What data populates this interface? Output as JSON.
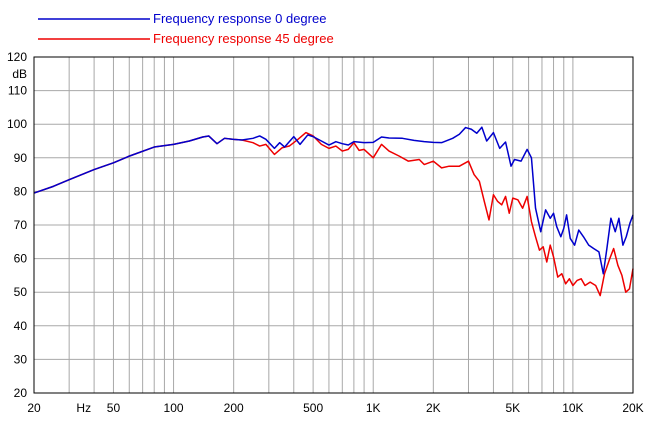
{
  "chart_data": {
    "type": "line",
    "x_scale": "log",
    "xlim": [
      20,
      20000
    ],
    "ylim": [
      20,
      120
    ],
    "grid": true,
    "ylabel": "dB",
    "xlabel": "",
    "legend_position": "top-left",
    "y_ticks": [
      {
        "value": 120,
        "label": "120"
      },
      {
        "value": 110,
        "label": "110"
      },
      {
        "value": 100,
        "label": "100"
      },
      {
        "value": 90,
        "label": "90"
      },
      {
        "value": 80,
        "label": "80"
      },
      {
        "value": 70,
        "label": "70"
      },
      {
        "value": 60,
        "label": "60"
      },
      {
        "value": 50,
        "label": "50"
      },
      {
        "value": 40,
        "label": "40"
      },
      {
        "value": 30,
        "label": "30"
      },
      {
        "value": 20,
        "label": "20"
      }
    ],
    "x_ticks": [
      {
        "value": 20,
        "label": "20"
      },
      {
        "value": 35.5,
        "label": "Hz"
      },
      {
        "value": 50,
        "label": "50"
      },
      {
        "value": 100,
        "label": "100"
      },
      {
        "value": 200,
        "label": "200"
      },
      {
        "value": 500,
        "label": "500"
      },
      {
        "value": 1000,
        "label": "1K"
      },
      {
        "value": 2000,
        "label": "2K"
      },
      {
        "value": 5000,
        "label": "5K"
      },
      {
        "value": 10000,
        "label": "10K"
      },
      {
        "value": 20000,
        "label": "20K"
      }
    ],
    "series": [
      {
        "name": "Frequency response 0 degree",
        "color": "#0000cc",
        "points": [
          [
            20,
            79.5
          ],
          [
            25,
            81.5
          ],
          [
            30,
            83.5
          ],
          [
            40,
            86.5
          ],
          [
            50,
            88.5
          ],
          [
            60,
            90.5
          ],
          [
            80,
            93.2
          ],
          [
            100,
            94.0
          ],
          [
            120,
            95.0
          ],
          [
            140,
            96.2
          ],
          [
            150,
            96.5
          ],
          [
            165,
            94.2
          ],
          [
            180,
            95.8
          ],
          [
            200,
            95.5
          ],
          [
            220,
            95.3
          ],
          [
            250,
            95.8
          ],
          [
            270,
            96.5
          ],
          [
            290,
            95.5
          ],
          [
            320,
            92.8
          ],
          [
            340,
            94.5
          ],
          [
            360,
            93.2
          ],
          [
            400,
            96.3
          ],
          [
            430,
            94.0
          ],
          [
            470,
            96.8
          ],
          [
            500,
            96.3
          ],
          [
            550,
            95.0
          ],
          [
            600,
            93.8
          ],
          [
            650,
            94.8
          ],
          [
            700,
            94.2
          ],
          [
            750,
            93.8
          ],
          [
            800,
            94.8
          ],
          [
            900,
            94.5
          ],
          [
            1000,
            94.6
          ],
          [
            1100,
            96.2
          ],
          [
            1200,
            95.9
          ],
          [
            1400,
            95.8
          ],
          [
            1600,
            95.2
          ],
          [
            1800,
            94.8
          ],
          [
            2000,
            94.6
          ],
          [
            2200,
            94.5
          ],
          [
            2500,
            95.8
          ],
          [
            2700,
            97.0
          ],
          [
            2900,
            99.0
          ],
          [
            3100,
            98.5
          ],
          [
            3300,
            97.3
          ],
          [
            3500,
            99.1
          ],
          [
            3700,
            95.0
          ],
          [
            4000,
            97.5
          ],
          [
            4300,
            92.8
          ],
          [
            4600,
            94.7
          ],
          [
            4900,
            87.5
          ],
          [
            5100,
            89.5
          ],
          [
            5500,
            89.0
          ],
          [
            5900,
            92.5
          ],
          [
            6200,
            90.0
          ],
          [
            6500,
            75.0
          ],
          [
            6900,
            68.0
          ],
          [
            7300,
            74.5
          ],
          [
            7700,
            72.0
          ],
          [
            8000,
            73.5
          ],
          [
            8300,
            69.5
          ],
          [
            8700,
            66.5
          ],
          [
            9000,
            69.0
          ],
          [
            9300,
            73.0
          ],
          [
            9700,
            66.0
          ],
          [
            10200,
            64.0
          ],
          [
            10700,
            68.5
          ],
          [
            11300,
            66.5
          ],
          [
            12000,
            64.0
          ],
          [
            12700,
            63.0
          ],
          [
            13500,
            62.0
          ],
          [
            14200,
            55.5
          ],
          [
            14800,
            63.0
          ],
          [
            15500,
            72.0
          ],
          [
            16300,
            68.0
          ],
          [
            17000,
            72.0
          ],
          [
            17800,
            64.0
          ],
          [
            18500,
            66.5
          ],
          [
            19300,
            70.5
          ],
          [
            20000,
            73.0
          ]
        ]
      },
      {
        "name": "Frequency response 45 degree",
        "color": "#ee0000",
        "points": [
          [
            20,
            79.5
          ],
          [
            25,
            81.5
          ],
          [
            30,
            83.5
          ],
          [
            40,
            86.5
          ],
          [
            50,
            88.5
          ],
          [
            60,
            90.5
          ],
          [
            80,
            93.2
          ],
          [
            100,
            94.0
          ],
          [
            120,
            95.0
          ],
          [
            140,
            96.2
          ],
          [
            150,
            96.5
          ],
          [
            165,
            94.2
          ],
          [
            180,
            95.8
          ],
          [
            200,
            95.5
          ],
          [
            220,
            95.3
          ],
          [
            250,
            94.5
          ],
          [
            270,
            93.5
          ],
          [
            290,
            94.0
          ],
          [
            320,
            91.0
          ],
          [
            350,
            93.0
          ],
          [
            380,
            93.5
          ],
          [
            420,
            95.5
          ],
          [
            460,
            97.5
          ],
          [
            500,
            96.5
          ],
          [
            550,
            94.0
          ],
          [
            600,
            92.8
          ],
          [
            650,
            93.5
          ],
          [
            700,
            92.0
          ],
          [
            750,
            92.5
          ],
          [
            800,
            94.5
          ],
          [
            850,
            92.2
          ],
          [
            900,
            92.5
          ],
          [
            1000,
            90.0
          ],
          [
            1100,
            94.0
          ],
          [
            1200,
            92.0
          ],
          [
            1350,
            90.5
          ],
          [
            1500,
            89.0
          ],
          [
            1700,
            89.5
          ],
          [
            1800,
            88.0
          ],
          [
            2000,
            89.0
          ],
          [
            2200,
            87.0
          ],
          [
            2400,
            87.5
          ],
          [
            2700,
            87.5
          ],
          [
            3000,
            89.0
          ],
          [
            3200,
            85.0
          ],
          [
            3400,
            83.0
          ],
          [
            3600,
            77.0
          ],
          [
            3800,
            71.5
          ],
          [
            4000,
            79.0
          ],
          [
            4200,
            77.0
          ],
          [
            4400,
            76.0
          ],
          [
            4600,
            78.5
          ],
          [
            4800,
            73.5
          ],
          [
            5000,
            78.0
          ],
          [
            5300,
            77.5
          ],
          [
            5600,
            75.0
          ],
          [
            5900,
            78.5
          ],
          [
            6200,
            71.0
          ],
          [
            6500,
            66.5
          ],
          [
            6800,
            62.5
          ],
          [
            7100,
            63.5
          ],
          [
            7400,
            59.0
          ],
          [
            7700,
            64.0
          ],
          [
            8000,
            60.5
          ],
          [
            8400,
            54.5
          ],
          [
            8800,
            55.5
          ],
          [
            9200,
            52.5
          ],
          [
            9600,
            54.0
          ],
          [
            10000,
            52.0
          ],
          [
            10500,
            53.5
          ],
          [
            11000,
            54.0
          ],
          [
            11500,
            52.0
          ],
          [
            12200,
            53.0
          ],
          [
            13000,
            52.0
          ],
          [
            13700,
            49.0
          ],
          [
            14400,
            55.5
          ],
          [
            15300,
            60.0
          ],
          [
            16000,
            63.0
          ],
          [
            16800,
            58.0
          ],
          [
            17600,
            55.0
          ],
          [
            18400,
            50.0
          ],
          [
            19200,
            51.0
          ],
          [
            20000,
            57.0
          ]
        ]
      }
    ]
  },
  "legend": [
    {
      "label": "Frequency response 0 degree",
      "color": "#0000cc"
    },
    {
      "label": "Frequency response 45 degree",
      "color": "#ee0000"
    }
  ]
}
